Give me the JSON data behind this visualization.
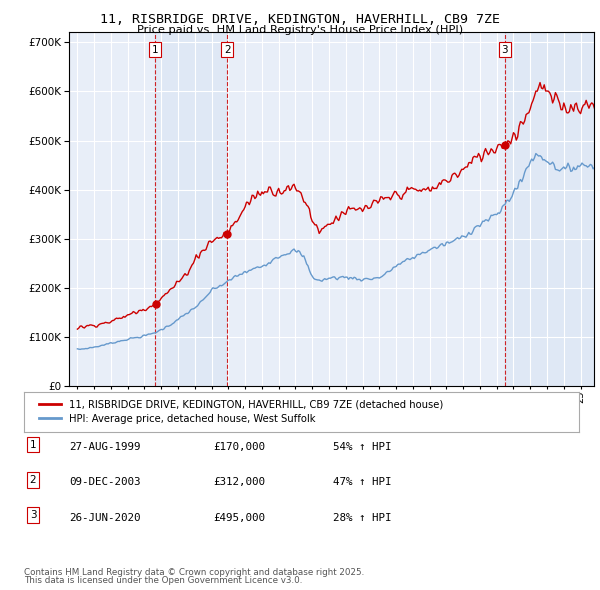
{
  "title": "11, RISBRIDGE DRIVE, KEDINGTON, HAVERHILL, CB9 7ZE",
  "subtitle": "Price paid vs. HM Land Registry's House Price Index (HPI)",
  "red_label": "11, RISBRIDGE DRIVE, KEDINGTON, HAVERHILL, CB9 7ZE (detached house)",
  "blue_label": "HPI: Average price, detached house, West Suffolk",
  "transactions": [
    {
      "num": 1,
      "date": "27-AUG-1999",
      "price": 170000,
      "pct": "54%",
      "x": 1999.65
    },
    {
      "num": 2,
      "date": "09-DEC-2003",
      "price": 312000,
      "pct": "47%",
      "x": 2003.93
    },
    {
      "num": 3,
      "date": "26-JUN-2020",
      "price": 495000,
      "pct": "28%",
      "x": 2020.48
    }
  ],
  "footnote1": "Contains HM Land Registry data © Crown copyright and database right 2025.",
  "footnote2": "This data is licensed under the Open Government Licence v3.0.",
  "ylim": [
    0,
    720000
  ],
  "yticks": [
    0,
    100000,
    200000,
    300000,
    400000,
    500000,
    600000,
    700000
  ],
  "ytick_labels": [
    "£0",
    "£100K",
    "£200K",
    "£300K",
    "£400K",
    "£500K",
    "£600K",
    "£700K"
  ],
  "xlim_start": 1994.5,
  "xlim_end": 2025.8,
  "background_color": "#e8eef8",
  "plot_bg": "#e8eef8",
  "grid_color": "#ffffff",
  "red_color": "#cc0000",
  "blue_color": "#6699cc",
  "shade_color": "#dce6f5",
  "dashed_color": "#cc0000"
}
